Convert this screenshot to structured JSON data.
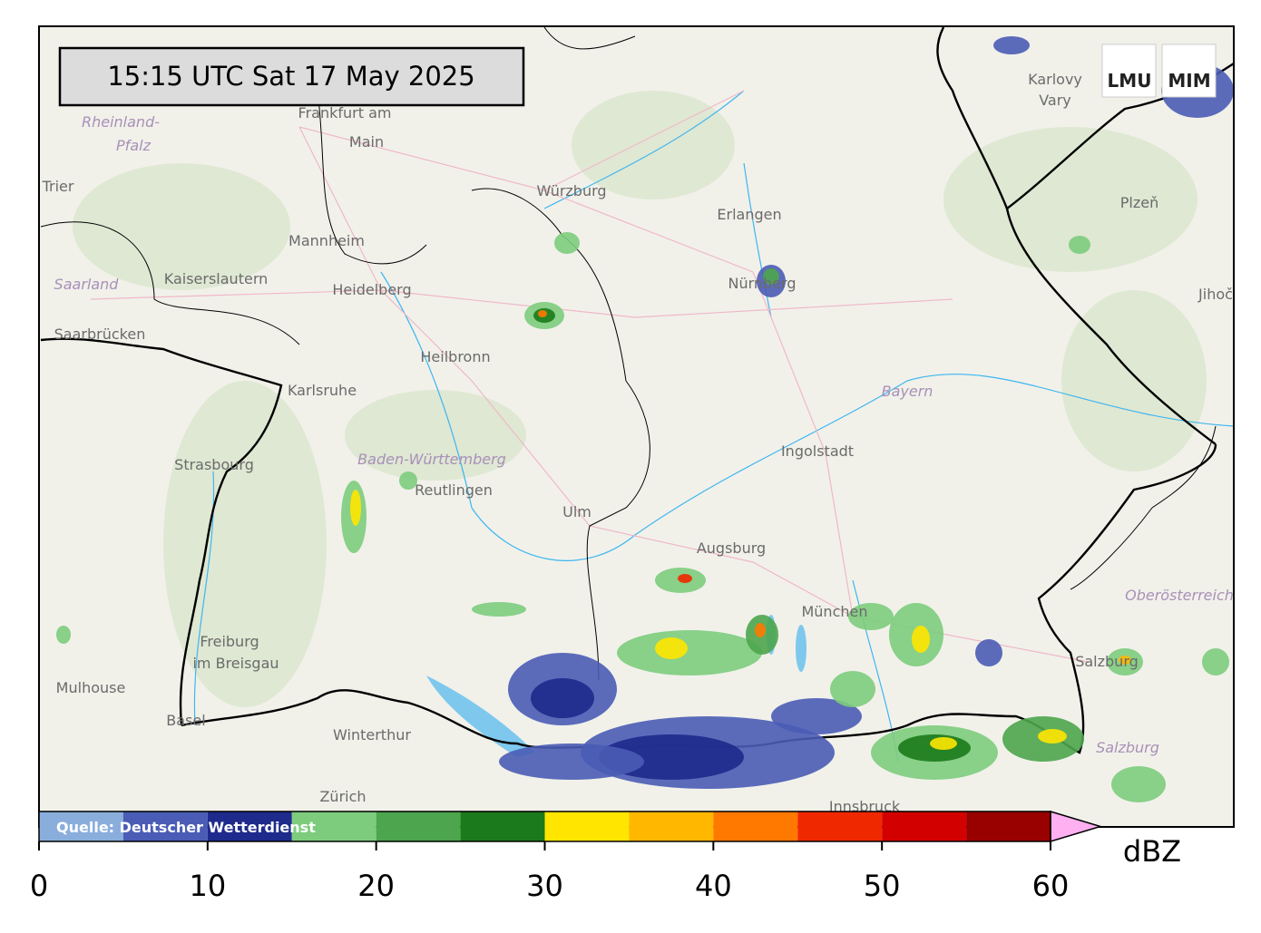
{
  "timestamp": "15:15 UTC  Sat 17 May 2025",
  "logo": {
    "left": "LMU",
    "right": "MIM"
  },
  "source": "Quelle: Deutscher Wetterdienst",
  "colorbar": {
    "label": "dBZ",
    "bounds": [
      0,
      5,
      10,
      15,
      20,
      25,
      30,
      35,
      40,
      45,
      50,
      55,
      60
    ],
    "colors": [
      "#8aaedc",
      "#4a5cb5",
      "#1e2a8c",
      "#7dcc7d",
      "#4da54d",
      "#1b7a1b",
      "#ffe500",
      "#ffb700",
      "#ff7800",
      "#f02800",
      "#d30000",
      "#990000"
    ],
    "extend_color": "#ffb0f0",
    "ticks": [
      0,
      10,
      20,
      30,
      40,
      50,
      60
    ]
  },
  "places": [
    "Frankfurt am",
    "Main",
    "Rheinland-",
    "Pfalz",
    "Trier",
    "Saarland",
    "Kaiserslautern",
    "Mannheim",
    "Heidelberg",
    "Saarbrücken",
    "Karlsruhe",
    "Heilbronn",
    "Würzburg",
    "Erlangen",
    "Nürnberg",
    "Karlovy",
    "Vary",
    "Plzeň",
    "Jihoč",
    "Bayern",
    "Ingolstadt",
    "Strasbourg",
    "Baden-Württemberg",
    "Reutlingen",
    "Ulm",
    "Augsburg",
    "München",
    "Oberösterreich",
    "Freiburg",
    "im Breisgau",
    "Mulhouse",
    "Basel",
    "Winterthur",
    "Zürich",
    "Salzburg",
    "Salzburg",
    "Innsbruck"
  ]
}
